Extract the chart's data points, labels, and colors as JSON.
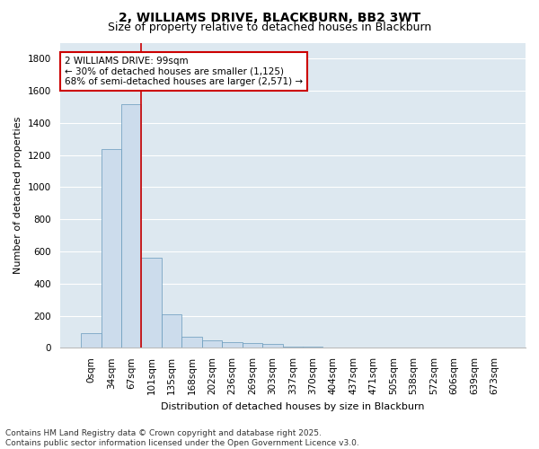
{
  "title": "2, WILLIAMS DRIVE, BLACKBURN, BB2 3WT",
  "subtitle": "Size of property relative to detached houses in Blackburn",
  "xlabel": "Distribution of detached houses by size in Blackburn",
  "ylabel": "Number of detached properties",
  "footer_line1": "Contains HM Land Registry data © Crown copyright and database right 2025.",
  "footer_line2": "Contains public sector information licensed under the Open Government Licence v3.0.",
  "annotation_line1": "2 WILLIAMS DRIVE: 99sqm",
  "annotation_line2": "← 30% of detached houses are smaller (1,125)",
  "annotation_line3": "68% of semi-detached houses are larger (2,571) →",
  "bar_labels": [
    "0sqm",
    "34sqm",
    "67sqm",
    "101sqm",
    "135sqm",
    "168sqm",
    "202sqm",
    "236sqm",
    "269sqm",
    "303sqm",
    "337sqm",
    "370sqm",
    "404sqm",
    "437sqm",
    "471sqm",
    "505sqm",
    "538sqm",
    "572sqm",
    "606sqm",
    "639sqm",
    "673sqm"
  ],
  "bar_values": [
    90,
    1235,
    1515,
    560,
    210,
    70,
    48,
    38,
    30,
    25,
    10,
    5,
    0,
    0,
    0,
    0,
    0,
    0,
    0,
    0,
    0
  ],
  "bar_color": "#ccdcec",
  "bar_edge_color": "#6699bb",
  "vline_color": "#cc0000",
  "vline_x": 2.5,
  "ylim": [
    0,
    1900
  ],
  "yticks": [
    0,
    200,
    400,
    600,
    800,
    1000,
    1200,
    1400,
    1600,
    1800
  ],
  "fig_bg_color": "#ffffff",
  "plot_bg_color": "#dde8f0",
  "grid_color": "#ffffff",
  "annotation_box_edge_color": "#cc0000",
  "annotation_box_face_color": "#ffffff",
  "title_fontsize": 10,
  "subtitle_fontsize": 9,
  "axis_label_fontsize": 8,
  "tick_fontsize": 7.5,
  "annotation_fontsize": 7.5,
  "footer_fontsize": 6.5
}
